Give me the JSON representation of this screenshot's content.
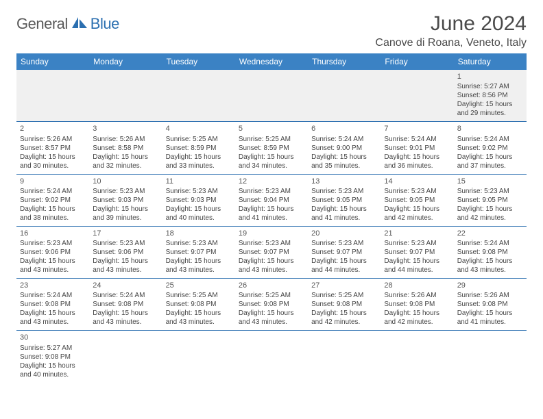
{
  "logo": {
    "text1": "General",
    "text2": "Blue"
  },
  "title": "June 2024",
  "location": "Canove di Roana, Veneto, Italy",
  "colors": {
    "header_bg": "#3b82c4",
    "header_text": "#ffffff",
    "border": "#2b6fb0",
    "week1_bg": "#f0f0f0",
    "logo_gray": "#5a5a5a",
    "logo_blue": "#2b6fb0"
  },
  "day_headers": [
    "Sunday",
    "Monday",
    "Tuesday",
    "Wednesday",
    "Thursday",
    "Friday",
    "Saturday"
  ],
  "weeks": [
    [
      null,
      null,
      null,
      null,
      null,
      null,
      {
        "n": "1",
        "sr": "5:27 AM",
        "ss": "8:56 PM",
        "dl": "15 hours and 29 minutes."
      }
    ],
    [
      {
        "n": "2",
        "sr": "5:26 AM",
        "ss": "8:57 PM",
        "dl": "15 hours and 30 minutes."
      },
      {
        "n": "3",
        "sr": "5:26 AM",
        "ss": "8:58 PM",
        "dl": "15 hours and 32 minutes."
      },
      {
        "n": "4",
        "sr": "5:25 AM",
        "ss": "8:59 PM",
        "dl": "15 hours and 33 minutes."
      },
      {
        "n": "5",
        "sr": "5:25 AM",
        "ss": "8:59 PM",
        "dl": "15 hours and 34 minutes."
      },
      {
        "n": "6",
        "sr": "5:24 AM",
        "ss": "9:00 PM",
        "dl": "15 hours and 35 minutes."
      },
      {
        "n": "7",
        "sr": "5:24 AM",
        "ss": "9:01 PM",
        "dl": "15 hours and 36 minutes."
      },
      {
        "n": "8",
        "sr": "5:24 AM",
        "ss": "9:02 PM",
        "dl": "15 hours and 37 minutes."
      }
    ],
    [
      {
        "n": "9",
        "sr": "5:24 AM",
        "ss": "9:02 PM",
        "dl": "15 hours and 38 minutes."
      },
      {
        "n": "10",
        "sr": "5:23 AM",
        "ss": "9:03 PM",
        "dl": "15 hours and 39 minutes."
      },
      {
        "n": "11",
        "sr": "5:23 AM",
        "ss": "9:03 PM",
        "dl": "15 hours and 40 minutes."
      },
      {
        "n": "12",
        "sr": "5:23 AM",
        "ss": "9:04 PM",
        "dl": "15 hours and 41 minutes."
      },
      {
        "n": "13",
        "sr": "5:23 AM",
        "ss": "9:05 PM",
        "dl": "15 hours and 41 minutes."
      },
      {
        "n": "14",
        "sr": "5:23 AM",
        "ss": "9:05 PM",
        "dl": "15 hours and 42 minutes."
      },
      {
        "n": "15",
        "sr": "5:23 AM",
        "ss": "9:05 PM",
        "dl": "15 hours and 42 minutes."
      }
    ],
    [
      {
        "n": "16",
        "sr": "5:23 AM",
        "ss": "9:06 PM",
        "dl": "15 hours and 43 minutes."
      },
      {
        "n": "17",
        "sr": "5:23 AM",
        "ss": "9:06 PM",
        "dl": "15 hours and 43 minutes."
      },
      {
        "n": "18",
        "sr": "5:23 AM",
        "ss": "9:07 PM",
        "dl": "15 hours and 43 minutes."
      },
      {
        "n": "19",
        "sr": "5:23 AM",
        "ss": "9:07 PM",
        "dl": "15 hours and 43 minutes."
      },
      {
        "n": "20",
        "sr": "5:23 AM",
        "ss": "9:07 PM",
        "dl": "15 hours and 44 minutes."
      },
      {
        "n": "21",
        "sr": "5:23 AM",
        "ss": "9:07 PM",
        "dl": "15 hours and 44 minutes."
      },
      {
        "n": "22",
        "sr": "5:24 AM",
        "ss": "9:08 PM",
        "dl": "15 hours and 43 minutes."
      }
    ],
    [
      {
        "n": "23",
        "sr": "5:24 AM",
        "ss": "9:08 PM",
        "dl": "15 hours and 43 minutes."
      },
      {
        "n": "24",
        "sr": "5:24 AM",
        "ss": "9:08 PM",
        "dl": "15 hours and 43 minutes."
      },
      {
        "n": "25",
        "sr": "5:25 AM",
        "ss": "9:08 PM",
        "dl": "15 hours and 43 minutes."
      },
      {
        "n": "26",
        "sr": "5:25 AM",
        "ss": "9:08 PM",
        "dl": "15 hours and 43 minutes."
      },
      {
        "n": "27",
        "sr": "5:25 AM",
        "ss": "9:08 PM",
        "dl": "15 hours and 42 minutes."
      },
      {
        "n": "28",
        "sr": "5:26 AM",
        "ss": "9:08 PM",
        "dl": "15 hours and 42 minutes."
      },
      {
        "n": "29",
        "sr": "5:26 AM",
        "ss": "9:08 PM",
        "dl": "15 hours and 41 minutes."
      }
    ],
    [
      {
        "n": "30",
        "sr": "5:27 AM",
        "ss": "9:08 PM",
        "dl": "15 hours and 40 minutes."
      },
      null,
      null,
      null,
      null,
      null,
      null
    ]
  ],
  "labels": {
    "sunrise": "Sunrise: ",
    "sunset": "Sunset: ",
    "daylight": "Daylight: "
  }
}
